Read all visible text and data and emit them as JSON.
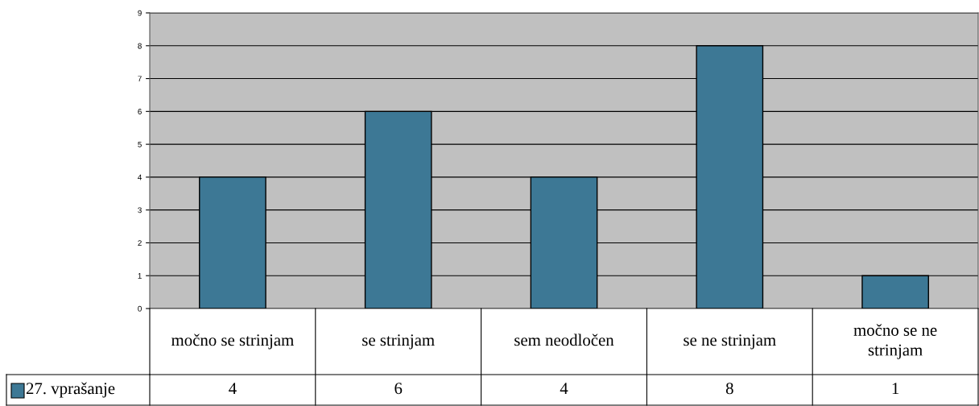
{
  "chart_data": {
    "type": "bar",
    "categories": [
      "močno se strinjam",
      "se strinjam",
      "sem neodločen",
      "se ne strinjam",
      "močno se ne strinjam"
    ],
    "series": [
      {
        "name": "27. vprašanje",
        "color": "#3d7895",
        "values": [
          4,
          6,
          4,
          8,
          1
        ]
      }
    ],
    "ylim": [
      0,
      9
    ],
    "yticks": [
      0,
      1,
      2,
      3,
      4,
      5,
      6,
      7,
      8,
      9
    ],
    "grid": "y",
    "legend": "bottom left",
    "data_labels": true
  }
}
